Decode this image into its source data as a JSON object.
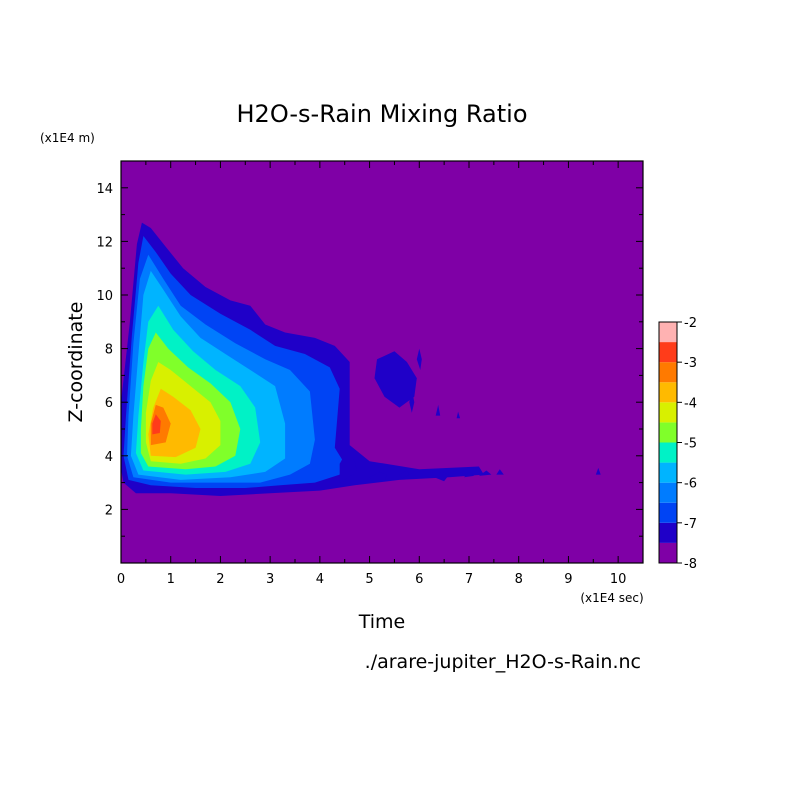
{
  "chart_data": {
    "type": "heatmap",
    "title": "H2O-s-Rain Mixing Ratio",
    "xlabel": "Time",
    "ylabel": "Z-coordinate",
    "x_unit": "(x1E4 sec)",
    "y_unit": "(x1E4 m)",
    "file_label": "./arare-jupiter_H2O-s-Rain.nc",
    "xlim": [
      0,
      10.5
    ],
    "ylim": [
      0,
      15
    ],
    "x_ticks": [
      0,
      1,
      2,
      3,
      4,
      5,
      6,
      7,
      8,
      9,
      10
    ],
    "y_ticks": [
      2,
      4,
      6,
      8,
      10,
      12,
      14
    ],
    "background_color": "#7f00a6",
    "colorbar": {
      "levels": [
        -8,
        -7.5,
        -7,
        -6.5,
        -6,
        -5.5,
        -5,
        -4.5,
        -4,
        -3.5,
        -3,
        -2.5,
        -2
      ],
      "tick_labels": [
        "-2",
        "-3",
        "-4",
        "-5",
        "-6",
        "-7",
        "-8"
      ],
      "colors": [
        "#7f00a6",
        "#1f00c8",
        "#0044f4",
        "#007cff",
        "#00b4ff",
        "#00f2c6",
        "#80ff2a",
        "#d8f000",
        "#ffba00",
        "#ff7a00",
        "#ff3c1a",
        "#ffb2b2"
      ]
    },
    "regions": [
      {
        "level": 1,
        "points": [
          [
            0.05,
            3.0
          ],
          [
            0.3,
            2.6
          ],
          [
            1.0,
            2.6
          ],
          [
            2.0,
            2.5
          ],
          [
            3.0,
            2.6
          ],
          [
            4.0,
            2.7
          ],
          [
            4.7,
            2.9
          ],
          [
            5.6,
            3.1
          ],
          [
            6.6,
            3.2
          ],
          [
            7.3,
            3.3
          ],
          [
            7.2,
            3.6
          ],
          [
            6.0,
            3.5
          ],
          [
            5.0,
            3.8
          ],
          [
            4.6,
            4.4
          ],
          [
            4.6,
            7.5
          ],
          [
            4.3,
            8.1
          ],
          [
            3.9,
            8.4
          ],
          [
            3.3,
            8.6
          ],
          [
            2.9,
            8.9
          ],
          [
            2.6,
            9.6
          ],
          [
            2.2,
            9.8
          ],
          [
            1.7,
            10.3
          ],
          [
            1.25,
            11.0
          ],
          [
            0.9,
            11.8
          ],
          [
            0.6,
            12.5
          ],
          [
            0.42,
            12.7
          ],
          [
            0.32,
            11.9
          ],
          [
            0.18,
            9.0
          ],
          [
            0.0,
            6.0
          ],
          [
            0.0,
            3.5
          ]
        ]
      },
      {
        "level": 2,
        "points": [
          [
            0.15,
            3.1
          ],
          [
            0.6,
            2.9
          ],
          [
            1.5,
            2.8
          ],
          [
            2.5,
            2.8
          ],
          [
            3.2,
            2.9
          ],
          [
            3.9,
            3.0
          ],
          [
            4.4,
            3.3
          ],
          [
            4.5,
            3.7
          ],
          [
            4.3,
            4.3
          ],
          [
            4.4,
            6.5
          ],
          [
            4.2,
            7.3
          ],
          [
            3.7,
            7.8
          ],
          [
            3.1,
            8.1
          ],
          [
            2.6,
            8.7
          ],
          [
            2.0,
            9.3
          ],
          [
            1.4,
            10.0
          ],
          [
            1.0,
            10.8
          ],
          [
            0.7,
            11.6
          ],
          [
            0.45,
            12.2
          ],
          [
            0.35,
            11.2
          ],
          [
            0.22,
            8.5
          ],
          [
            0.1,
            5.5
          ],
          [
            0.05,
            4.0
          ]
        ]
      },
      {
        "level": 3,
        "points": [
          [
            0.25,
            3.2
          ],
          [
            1.0,
            3.0
          ],
          [
            2.0,
            3.0
          ],
          [
            2.8,
            3.0
          ],
          [
            3.4,
            3.3
          ],
          [
            3.8,
            3.7
          ],
          [
            3.9,
            4.6
          ],
          [
            3.8,
            6.4
          ],
          [
            3.4,
            7.2
          ],
          [
            2.9,
            7.6
          ],
          [
            2.3,
            8.2
          ],
          [
            1.7,
            8.9
          ],
          [
            1.2,
            9.6
          ],
          [
            0.85,
            10.6
          ],
          [
            0.55,
            11.5
          ],
          [
            0.38,
            10.6
          ],
          [
            0.25,
            8.2
          ],
          [
            0.15,
            5.5
          ],
          [
            0.12,
            4.0
          ]
        ]
      },
      {
        "level": 4,
        "points": [
          [
            0.35,
            3.3
          ],
          [
            1.2,
            3.1
          ],
          [
            2.2,
            3.2
          ],
          [
            2.9,
            3.4
          ],
          [
            3.3,
            3.9
          ],
          [
            3.3,
            5.2
          ],
          [
            3.1,
            6.6
          ],
          [
            2.6,
            7.2
          ],
          [
            2.1,
            7.8
          ],
          [
            1.6,
            8.4
          ],
          [
            1.2,
            9.2
          ],
          [
            0.85,
            10.2
          ],
          [
            0.6,
            10.9
          ],
          [
            0.45,
            10.0
          ],
          [
            0.35,
            7.8
          ],
          [
            0.25,
            5.5
          ],
          [
            0.2,
            4.0
          ]
        ]
      },
      {
        "level": 5,
        "points": [
          [
            0.45,
            3.45
          ],
          [
            1.3,
            3.3
          ],
          [
            2.1,
            3.4
          ],
          [
            2.6,
            3.7
          ],
          [
            2.8,
            4.5
          ],
          [
            2.7,
            5.8
          ],
          [
            2.4,
            6.6
          ],
          [
            1.9,
            7.2
          ],
          [
            1.45,
            7.9
          ],
          [
            1.05,
            8.7
          ],
          [
            0.75,
            9.6
          ],
          [
            0.55,
            9.0
          ],
          [
            0.45,
            7.5
          ],
          [
            0.35,
            5.5
          ],
          [
            0.3,
            4.1
          ]
        ]
      },
      {
        "level": 6,
        "points": [
          [
            0.55,
            3.6
          ],
          [
            1.3,
            3.5
          ],
          [
            1.9,
            3.6
          ],
          [
            2.3,
            4.0
          ],
          [
            2.4,
            5.0
          ],
          [
            2.2,
            6.0
          ],
          [
            1.8,
            6.7
          ],
          [
            1.35,
            7.3
          ],
          [
            0.95,
            8.0
          ],
          [
            0.7,
            8.6
          ],
          [
            0.55,
            8.0
          ],
          [
            0.45,
            6.6
          ],
          [
            0.4,
            5.0
          ],
          [
            0.4,
            4.1
          ]
        ]
      },
      {
        "level": 7,
        "points": [
          [
            0.6,
            3.8
          ],
          [
            1.2,
            3.7
          ],
          [
            1.7,
            3.9
          ],
          [
            2.0,
            4.4
          ],
          [
            2.0,
            5.3
          ],
          [
            1.8,
            6.0
          ],
          [
            1.4,
            6.6
          ],
          [
            1.0,
            7.2
          ],
          [
            0.75,
            7.5
          ],
          [
            0.6,
            6.8
          ],
          [
            0.5,
            5.6
          ],
          [
            0.5,
            4.5
          ]
        ]
      },
      {
        "level": 8,
        "points": [
          [
            0.6,
            4.0
          ],
          [
            1.1,
            3.95
          ],
          [
            1.5,
            4.3
          ],
          [
            1.6,
            5.0
          ],
          [
            1.4,
            5.7
          ],
          [
            1.05,
            6.2
          ],
          [
            0.8,
            6.5
          ],
          [
            0.65,
            5.8
          ],
          [
            0.55,
            4.8
          ]
        ]
      },
      {
        "level": 9,
        "points": [
          [
            0.6,
            4.4
          ],
          [
            0.9,
            4.5
          ],
          [
            1.0,
            5.2
          ],
          [
            0.85,
            5.8
          ],
          [
            0.7,
            5.9
          ],
          [
            0.6,
            5.2
          ]
        ]
      },
      {
        "level": 10,
        "points": [
          [
            0.63,
            4.8
          ],
          [
            0.78,
            4.85
          ],
          [
            0.8,
            5.3
          ],
          [
            0.7,
            5.55
          ],
          [
            0.63,
            5.2
          ]
        ]
      },
      {
        "level": 2,
        "points": [
          [
            5.2,
            7.4
          ],
          [
            5.45,
            7.3
          ],
          [
            5.7,
            7.05
          ],
          [
            5.8,
            6.6
          ],
          [
            5.6,
            6.3
          ],
          [
            5.3,
            6.7
          ]
        ]
      },
      {
        "level": 1,
        "points": [
          [
            5.15,
            7.6
          ],
          [
            5.5,
            7.9
          ],
          [
            5.75,
            7.5
          ],
          [
            5.95,
            6.9
          ],
          [
            5.9,
            6.2
          ],
          [
            5.6,
            5.8
          ],
          [
            5.3,
            6.2
          ],
          [
            5.1,
            6.9
          ]
        ]
      },
      {
        "level": 1,
        "points": [
          [
            5.95,
            7.6
          ],
          [
            6.0,
            8.0
          ],
          [
            6.05,
            7.6
          ],
          [
            6.02,
            7.2
          ]
        ]
      },
      {
        "level": 1,
        "points": [
          [
            5.8,
            6.0
          ],
          [
            5.85,
            6.5
          ],
          [
            5.9,
            6.0
          ],
          [
            5.85,
            5.6
          ]
        ]
      },
      {
        "level": 1,
        "points": [
          [
            4.4,
            3.0
          ],
          [
            4.75,
            3.4
          ],
          [
            4.7,
            3.8
          ],
          [
            4.55,
            4.2
          ],
          [
            4.4,
            3.7
          ]
        ]
      },
      {
        "level": 1,
        "points": [
          [
            5.0,
            3.2
          ],
          [
            5.2,
            3.4
          ],
          [
            5.35,
            3.3
          ],
          [
            5.3,
            3.05
          ],
          [
            5.05,
            3.05
          ]
        ]
      },
      {
        "level": 1,
        "points": [
          [
            5.6,
            3.3
          ],
          [
            5.75,
            3.45
          ],
          [
            5.8,
            3.3
          ],
          [
            5.65,
            3.15
          ]
        ]
      },
      {
        "level": 1,
        "points": [
          [
            6.3,
            3.2
          ],
          [
            6.45,
            3.4
          ],
          [
            6.6,
            3.3
          ],
          [
            6.5,
            3.05
          ]
        ]
      },
      {
        "level": 1,
        "points": [
          [
            6.9,
            3.2
          ],
          [
            7.0,
            3.4
          ],
          [
            7.1,
            3.25
          ]
        ]
      },
      {
        "level": 1,
        "points": [
          [
            7.2,
            3.25
          ],
          [
            7.35,
            3.45
          ],
          [
            7.45,
            3.3
          ]
        ]
      },
      {
        "level": 1,
        "points": [
          [
            7.55,
            3.3
          ],
          [
            7.62,
            3.5
          ],
          [
            7.7,
            3.3
          ]
        ]
      },
      {
        "level": 1,
        "points": [
          [
            9.55,
            3.3
          ],
          [
            9.6,
            3.55
          ],
          [
            9.65,
            3.3
          ]
        ]
      },
      {
        "level": 1,
        "points": [
          [
            6.33,
            5.5
          ],
          [
            6.38,
            5.9
          ],
          [
            6.42,
            5.5
          ]
        ]
      },
      {
        "level": 1,
        "points": [
          [
            6.75,
            5.4
          ],
          [
            6.78,
            5.65
          ],
          [
            6.82,
            5.4
          ]
        ]
      }
    ]
  }
}
